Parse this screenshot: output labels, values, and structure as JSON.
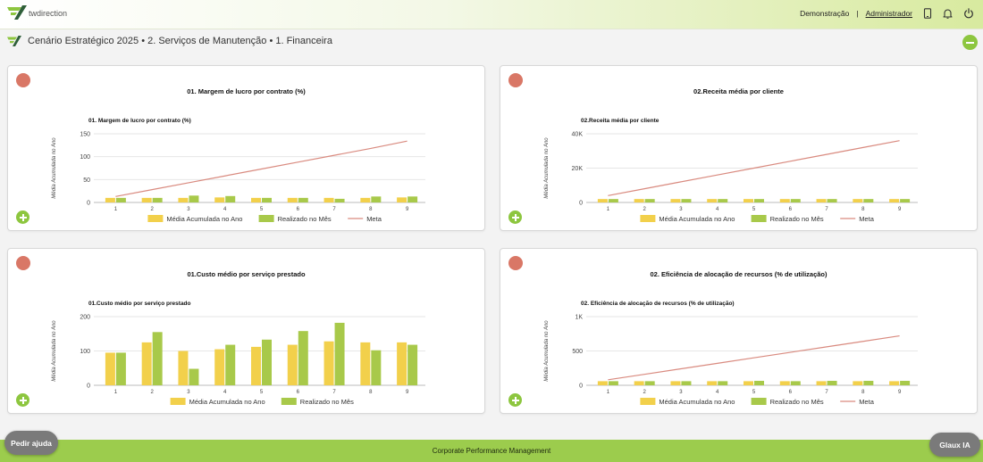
{
  "header": {
    "logo_text": "twdirection",
    "demo_label": "Demonstração",
    "separator": "|",
    "admin_label": "Administrador",
    "icons": [
      "tablet-icon",
      "bell-icon",
      "power-icon"
    ]
  },
  "breadcrumb": {
    "text": "Cenário Estratégico 2025 • 2. Serviços de Manutenção • 1. Financeira"
  },
  "legend": {
    "avg": "Média Acumulada no Ano",
    "real": "Realizado no Mês",
    "meta": "Meta"
  },
  "colors": {
    "brand_green": "#8dc63f",
    "avg_bar": "#f2d04b",
    "real_bar": "#a8c94a",
    "meta_line": "#d98a7f",
    "status_red": "#d97766"
  },
  "cards": [
    {
      "card_title": "01. Margem de lucro por contrato (%)",
      "chart_data": {
        "type": "bar",
        "title": "01. Margem de lucro por contrato (%)",
        "ylabel": "Média Acumulada no Ano",
        "categories": [
          "1",
          "2",
          "3",
          "4",
          "5",
          "6",
          "7",
          "8",
          "9"
        ],
        "ylim": [
          0,
          150
        ],
        "yticks": [
          "0",
          "50",
          "100",
          "150"
        ],
        "series": [
          {
            "name": "Média Acumulada no Ano",
            "values": [
              10,
              10,
              10,
              11,
              10,
              10,
              10,
              10,
              11
            ]
          },
          {
            "name": "Realizado no Mês",
            "values": [
              10,
              10,
              15,
              14,
              10,
              10,
              8,
              13,
              13
            ]
          },
          {
            "name": "Meta",
            "kind": "line",
            "values": [
              13,
              28,
              43,
              58,
              73,
              88,
              103,
              118,
              134
            ]
          }
        ]
      }
    },
    {
      "card_title": "02.Receita média por cliente",
      "chart_data": {
        "type": "bar",
        "title": "02.Receita média por cliente",
        "ylabel": "Média Acumulada no Ano",
        "categories": [
          "1",
          "2",
          "3",
          "4",
          "5",
          "6",
          "7",
          "8",
          "9"
        ],
        "ylim": [
          0,
          40000
        ],
        "yticks": [
          "0",
          "20K",
          "40K"
        ],
        "series": [
          {
            "name": "Média Acumulada no Ano",
            "values": [
              2000,
              2000,
              2000,
              2000,
              2000,
              2000,
              2000,
              2000,
              2000
            ]
          },
          {
            "name": "Realizado no Mês",
            "values": [
              2000,
              2000,
              2000,
              2000,
              2000,
              2000,
              2000,
              2000,
              2000
            ]
          },
          {
            "name": "Meta",
            "kind": "line",
            "values": [
              4000,
              8000,
              12000,
              16000,
              20000,
              24000,
              28000,
              32000,
              36000
            ]
          }
        ]
      }
    },
    {
      "card_title": "01.Custo médio por serviço prestado",
      "chart_data": {
        "type": "bar",
        "title": "01.Custo médio por serviço prestado",
        "ylabel": "Média Acumulada no Ano",
        "categories": [
          "1",
          "2",
          "3",
          "4",
          "5",
          "6",
          "7",
          "8",
          "9"
        ],
        "ylim": [
          0,
          200
        ],
        "yticks": [
          "0",
          "100",
          "200"
        ],
        "series": [
          {
            "name": "Média Acumulada no Ano",
            "values": [
              95,
              125,
              100,
              105,
              112,
              118,
              128,
              125,
              125
            ]
          },
          {
            "name": "Realizado no Mês",
            "values": [
              95,
              155,
              48,
              118,
              133,
              158,
              182,
              102,
              118
            ]
          }
        ]
      }
    },
    {
      "card_title": "02. Eficiência de alocação de recursos (% de utilização)",
      "chart_data": {
        "type": "bar",
        "title": "02. Eficiência de alocação de recursos (% de utilização)",
        "ylabel": "Média Acumulada no Ano",
        "categories": [
          "1",
          "2",
          "3",
          "4",
          "5",
          "6",
          "7",
          "8",
          "9"
        ],
        "ylim": [
          0,
          1000
        ],
        "yticks": [
          "0",
          "500",
          "1K"
        ],
        "series": [
          {
            "name": "Média Acumulada no Ano",
            "values": [
              60,
              60,
              60,
              60,
              60,
              60,
              60,
              60,
              60
            ]
          },
          {
            "name": "Realizado no Mês",
            "values": [
              60,
              60,
              60,
              60,
              65,
              60,
              65,
              65,
              65
            ]
          },
          {
            "name": "Meta",
            "kind": "line",
            "values": [
              80,
              160,
              240,
              320,
              400,
              480,
              560,
              640,
              720
            ]
          }
        ]
      }
    }
  ],
  "footer": {
    "text": "Corporate Performance Management",
    "help_button": "Pedir ajuda",
    "ai_button": "Glaux IA"
  }
}
